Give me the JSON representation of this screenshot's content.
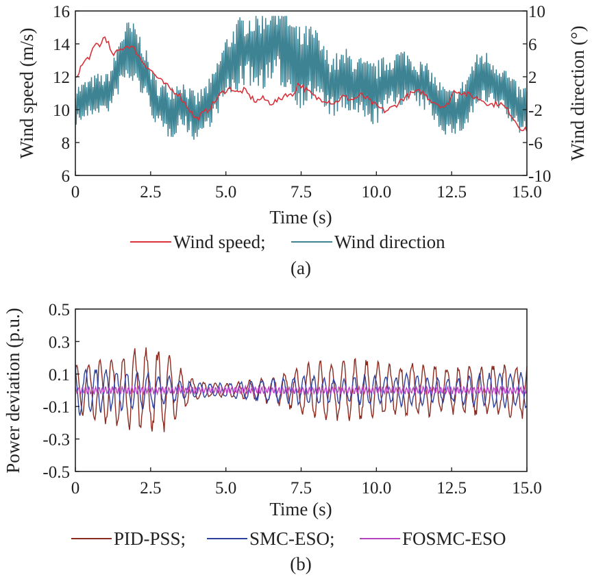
{
  "figure": {
    "panel_a_caption": "(a)",
    "panel_b_caption": "(b)"
  },
  "chart_data": [
    {
      "type": "line",
      "title": "",
      "xlabel": "Time (s)",
      "ylabel": "Wind speed (m/s)",
      "y2label": "Wind direction (°)",
      "xlim": [
        0,
        15
      ],
      "ylim": [
        6,
        16
      ],
      "y2lim": [
        -10,
        10
      ],
      "xticks": [
        "0",
        "2.5",
        "5.0",
        "7.5",
        "10.0",
        "12.5",
        "15.0"
      ],
      "yticks": [
        "6",
        "8",
        "10",
        "12",
        "14",
        "16"
      ],
      "y2ticks": [
        "-10",
        "-6",
        "-2",
        "2",
        "6",
        "10"
      ],
      "grid": false,
      "legend_position": "below",
      "series": [
        {
          "name": "Wind speed;",
          "axis": "left",
          "color": "#d9313a",
          "x": [
            0,
            0.15,
            0.3,
            0.5,
            0.7,
            0.85,
            0.95,
            1.0,
            1.1,
            1.2,
            1.4,
            1.6,
            1.8,
            2.0,
            2.2,
            2.4,
            2.6,
            2.8,
            3.0,
            3.2,
            3.4,
            3.6,
            3.8,
            4.0,
            4.2,
            4.4,
            4.6,
            4.8,
            5.0,
            5.2,
            5.4,
            5.6,
            5.8,
            6.0,
            6.2,
            6.5,
            6.8,
            7.0,
            7.2,
            7.4,
            7.6,
            7.8,
            8.0,
            8.3,
            8.6,
            8.9,
            9.2,
            9.5,
            9.8,
            10.0,
            10.3,
            10.6,
            10.9,
            11.2,
            11.5,
            11.8,
            12.0,
            12.3,
            12.6,
            12.9,
            13.2,
            13.5,
            13.8,
            14.1,
            14.4,
            14.7,
            14.9,
            15.0
          ],
          "values": [
            11.8,
            12.5,
            12.9,
            13.3,
            14.0,
            13.9,
            14.5,
            14.4,
            14.0,
            13.3,
            13.5,
            13.8,
            13.9,
            13.6,
            13.0,
            12.6,
            12.2,
            11.8,
            11.5,
            11.2,
            11.0,
            10.5,
            10.0,
            9.4,
            9.7,
            10.0,
            10.4,
            10.9,
            11.2,
            11.3,
            11.0,
            11.2,
            10.8,
            10.5,
            10.7,
            10.4,
            10.6,
            11.0,
            10.8,
            11.6,
            11.3,
            11.0,
            10.7,
            10.6,
            10.4,
            10.8,
            10.6,
            10.9,
            10.5,
            10.2,
            9.9,
            10.2,
            10.7,
            11.0,
            11.1,
            10.6,
            10.4,
            10.1,
            11.2,
            11.0,
            10.8,
            10.6,
            10.3,
            10.4,
            9.9,
            9.1,
            8.7,
            8.8
          ]
        },
        {
          "name": "Wind direction",
          "axis": "right",
          "color": "#3d8393",
          "x": [
            0,
            0.25,
            0.5,
            0.75,
            1.0,
            1.25,
            1.5,
            1.75,
            2.0,
            2.25,
            2.5,
            2.75,
            3.0,
            3.25,
            3.5,
            3.75,
            4.0,
            4.25,
            4.5,
            4.75,
            5.0,
            5.25,
            5.5,
            5.75,
            6.0,
            6.25,
            6.5,
            6.75,
            7.0,
            7.25,
            7.5,
            7.75,
            8.0,
            8.25,
            8.5,
            8.75,
            9.0,
            9.25,
            9.5,
            9.75,
            10.0,
            10.25,
            10.5,
            10.75,
            11.0,
            11.25,
            11.5,
            11.75,
            12.0,
            12.25,
            12.5,
            12.75,
            13.0,
            13.25,
            13.5,
            13.75,
            14.0,
            14.25,
            14.5,
            14.75,
            15.0
          ],
          "values": [
            -1.5,
            -1.0,
            -0.5,
            0.0,
            -0.2,
            1.0,
            4.0,
            5.0,
            4.5,
            3.0,
            0.5,
            -1.5,
            -2.0,
            -2.0,
            -1.0,
            -2.0,
            -3.0,
            -2.0,
            -1.0,
            1.0,
            3.0,
            4.0,
            5.0,
            5.5,
            5.0,
            5.5,
            6.0,
            6.5,
            5.5,
            4.0,
            3.0,
            3.5,
            3.5,
            2.0,
            1.0,
            1.0,
            1.5,
            1.0,
            0.5,
            0.0,
            0.0,
            1.0,
            1.5,
            2.0,
            2.0,
            1.5,
            1.0,
            0.5,
            -1.0,
            -2.0,
            -2.5,
            -2.0,
            -1.0,
            1.0,
            2.0,
            1.5,
            1.0,
            0.5,
            -1.0,
            -2.0,
            -2.0
          ],
          "amplitude": [
            2.5,
            2.5,
            2.5,
            2.5,
            2.5,
            3.0,
            3.5,
            4.0,
            4.0,
            3.5,
            3.0,
            3.0,
            3.5,
            3.5,
            3.0,
            3.0,
            3.0,
            3.0,
            3.0,
            3.5,
            4.0,
            4.5,
            4.5,
            4.5,
            5.0,
            5.0,
            5.5,
            5.5,
            5.5,
            5.0,
            5.0,
            5.0,
            4.5,
            4.0,
            4.0,
            4.0,
            4.0,
            4.0,
            4.0,
            4.0,
            4.0,
            3.5,
            3.5,
            3.5,
            3.5,
            3.0,
            3.0,
            3.0,
            3.0,
            3.0,
            3.0,
            3.0,
            3.5,
            3.5,
            3.5,
            3.5,
            3.0,
            3.0,
            3.0,
            3.0,
            3.0
          ]
        }
      ]
    },
    {
      "type": "line",
      "title": "",
      "xlabel": "Time (s)",
      "ylabel": "Power deviation (p.u.)",
      "xlim": [
        0,
        15
      ],
      "ylim": [
        -0.5,
        0.5
      ],
      "xticks": [
        "0",
        "2.5",
        "5.0",
        "7.5",
        "10.0",
        "12.5",
        "15.0"
      ],
      "yticks": [
        "-0.5",
        "-0.3",
        "-0.1",
        "0.1",
        "0.3",
        "0.5"
      ],
      "grid": false,
      "legend_position": "below",
      "series": [
        {
          "name": "PID-PSS;",
          "color": "#8b2a1f",
          "x": [
            0,
            1,
            2,
            2.5,
            3,
            3.5,
            4,
            4.5,
            5,
            5.5,
            6,
            6.5,
            7,
            7.5,
            8,
            8.5,
            9,
            9.5,
            10,
            10.5,
            11,
            11.5,
            12,
            12.5,
            13,
            13.5,
            14,
            14.5,
            15
          ],
          "values": [
            0.14,
            0.18,
            0.24,
            0.25,
            0.22,
            0.12,
            0.06,
            0.04,
            0.04,
            0.05,
            0.06,
            0.08,
            0.1,
            0.14,
            0.16,
            0.16,
            0.17,
            0.18,
            0.16,
            0.14,
            0.15,
            0.15,
            0.14,
            0.13,
            0.14,
            0.15,
            0.15,
            0.15,
            0.16
          ]
        },
        {
          "name": "SMC-ESO;",
          "color": "#2b3fa0",
          "x": [
            0,
            1,
            2,
            2.5,
            3,
            3.5,
            4,
            4.5,
            5,
            5.5,
            6,
            6.5,
            7,
            7.5,
            8,
            8.5,
            9,
            9.5,
            10,
            10.5,
            11,
            11.5,
            12,
            12.5,
            13,
            13.5,
            14,
            14.5,
            15
          ],
          "values": [
            0.14,
            0.12,
            0.11,
            0.1,
            0.08,
            0.06,
            0.04,
            0.04,
            0.04,
            0.05,
            0.06,
            0.07,
            0.07,
            0.08,
            0.08,
            0.07,
            0.07,
            0.08,
            0.08,
            0.08,
            0.09,
            0.08,
            0.07,
            0.07,
            0.08,
            0.09,
            0.1,
            0.1,
            0.1
          ]
        },
        {
          "name": "FOSMC-ESO",
          "color": "#b83fbf",
          "x": [
            0,
            15
          ],
          "values": [
            0.025,
            0.025
          ]
        }
      ]
    }
  ]
}
